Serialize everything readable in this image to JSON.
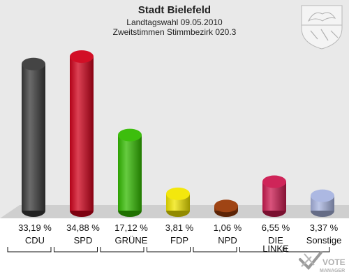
{
  "header": {
    "title": "Stadt Bielefeld",
    "subtitle_line1": "Landtagswahl 09.05.2010",
    "subtitle_line2": "Zweitstimmen Stimmbezirk 020.3"
  },
  "branding": {
    "logo_line1": "VOTE",
    "logo_line2": "MANAGER",
    "crest_icon": "nrw-coat-of-arms-icon"
  },
  "chart_data": {
    "type": "bar",
    "title": "Stadt Bielefeld",
    "subtitle": "Landtagswahl 09.05.2010 · Zweitstimmen Stimmbezirk 020.3",
    "xlabel": "",
    "ylabel": "",
    "ylim": [
      0,
      36
    ],
    "grid": false,
    "legend": "none",
    "categories": [
      "CDU",
      "SPD",
      "GRÜNE",
      "FDP",
      "NPD",
      "DIE LINKE",
      "Sonstige"
    ],
    "category_lines": [
      [
        "CDU"
      ],
      [
        "SPD"
      ],
      [
        "GRÜNE"
      ],
      [
        "FDP"
      ],
      [
        "NPD"
      ],
      [
        "DIE",
        "LINKE"
      ],
      [
        "Sonstige"
      ]
    ],
    "values": [
      33.19,
      34.88,
      17.12,
      3.81,
      1.06,
      6.55,
      3.37
    ],
    "value_labels": [
      "33,19 %",
      "34,88 %",
      "17,12 %",
      "3,81 %",
      "1,06 %",
      "6,55 %",
      "3,37 %"
    ],
    "colors": [
      "#3a3a3a",
      "#d0021b",
      "#33bb00",
      "#f2e600",
      "#9a3a08",
      "#cc1a50",
      "#a8b4e0"
    ]
  }
}
